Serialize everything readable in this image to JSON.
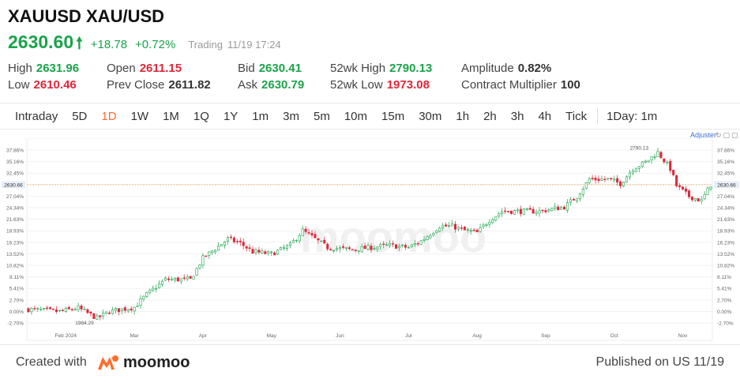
{
  "header": {
    "title": "XAUUSD XAU/USD",
    "price": "2630.60",
    "change": "+18.78",
    "change_pct": "+0.72%",
    "status": "Trading",
    "datetime": "11/19 17:24"
  },
  "stats": {
    "high_label": "High",
    "high": "2631.96",
    "low_label": "Low",
    "low": "2610.46",
    "open_label": "Open",
    "open": "2611.15",
    "prev_close_label": "Prev Close",
    "prev_close": "2611.82",
    "bid_label": "Bid",
    "bid": "2630.41",
    "ask_label": "Ask",
    "ask": "2630.79",
    "wk52_high_label": "52wk High",
    "wk52_high": "2790.13",
    "wk52_low_label": "52wk Low",
    "wk52_low": "1973.08",
    "amplitude_label": "Amplitude",
    "amplitude": "0.82%",
    "multiplier_label": "Contract Multiplier",
    "multiplier": "100"
  },
  "tabs": [
    "Intraday",
    "5D",
    "1D",
    "1W",
    "1M",
    "1Q",
    "1Y",
    "1m",
    "3m",
    "5m",
    "10m",
    "15m",
    "30m",
    "1h",
    "2h",
    "3h",
    "4h",
    "Tick"
  ],
  "active_tab": "1D",
  "period_select": "1Day: 1m",
  "adjust_label": "Adjuster",
  "footer": {
    "created": "Created with",
    "brand": "moomoo",
    "published": "Published on US 11/19"
  },
  "colors": {
    "up": "#1aa34a",
    "down": "#e0263a",
    "accent": "#ff6c2a",
    "last_line": "#f0a050"
  },
  "chart_data": {
    "type": "candlestick",
    "y_unit": "% change",
    "y_ticks": [
      37.86,
      35.16,
      32.45,
      29.74,
      27.04,
      24.34,
      21.63,
      18.93,
      16.23,
      13.52,
      10.82,
      8.11,
      5.41,
      2.7,
      0.0,
      -2.7
    ],
    "y_tick_labels": [
      "37.86%",
      "35.16%",
      "32.45%",
      "29.74%",
      "27.04%",
      "24.34%",
      "21.63%",
      "18.93%",
      "16.23%",
      "13.52%",
      "10.82%",
      "8.11%",
      "5.41%",
      "2.70%",
      "0.00%",
      "-2.70%"
    ],
    "ylim": [
      -2.7,
      37.86
    ],
    "x_labels": [
      "Feb 2024",
      "Mar",
      "Apr",
      "May",
      "Jun",
      "Jul",
      "Aug",
      "Sep",
      "Oct",
      "Nov"
    ],
    "x_label_index": [
      12,
      34,
      56,
      78,
      100,
      122,
      144,
      166,
      188,
      210
    ],
    "n_candles": 220,
    "last_price_label": "2630.66",
    "last_price_pct": 29.74,
    "annotations": [
      {
        "text": "2790.13",
        "index": 200,
        "pct": 37.6
      },
      {
        "text": "1984.29",
        "index": 22,
        "pct": -1.6
      }
    ],
    "watermark": "moomoo",
    "path_points": [
      [
        0,
        0.5
      ],
      [
        10,
        0.0
      ],
      [
        16,
        0.8
      ],
      [
        22,
        -1.6
      ],
      [
        26,
        0.0
      ],
      [
        34,
        1.0
      ],
      [
        38,
        4.0
      ],
      [
        44,
        7.5
      ],
      [
        52,
        7.5
      ],
      [
        56,
        12.5
      ],
      [
        64,
        17.0
      ],
      [
        68,
        16.0
      ],
      [
        72,
        14.0
      ],
      [
        78,
        13.5
      ],
      [
        84,
        15.5
      ],
      [
        88,
        19.0
      ],
      [
        92,
        17.0
      ],
      [
        96,
        15.0
      ],
      [
        104,
        14.5
      ],
      [
        110,
        15.0
      ],
      [
        116,
        15.5
      ],
      [
        122,
        15.0
      ],
      [
        126,
        16.5
      ],
      [
        132,
        20.0
      ],
      [
        136,
        20.0
      ],
      [
        140,
        19.0
      ],
      [
        144,
        18.5
      ],
      [
        148,
        21.5
      ],
      [
        152,
        23.5
      ],
      [
        158,
        23.5
      ],
      [
        164,
        23.5
      ],
      [
        172,
        24.5
      ],
      [
        176,
        27.0
      ],
      [
        180,
        31.0
      ],
      [
        186,
        31.0
      ],
      [
        190,
        30.0
      ],
      [
        194,
        33.5
      ],
      [
        198,
        35.0
      ],
      [
        202,
        37.3
      ],
      [
        206,
        33.5
      ],
      [
        208,
        29.5
      ],
      [
        212,
        27.0
      ],
      [
        216,
        26.0
      ],
      [
        219,
        29.74
      ]
    ]
  }
}
